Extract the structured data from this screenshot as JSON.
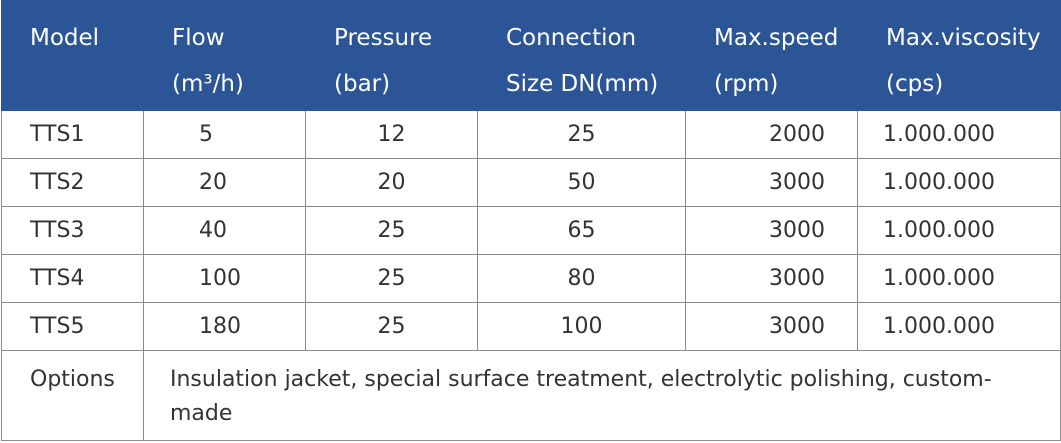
{
  "table": {
    "header": [
      [
        "Model"
      ],
      [
        "Flow",
        "(m³/h)"
      ],
      [
        "Pressure",
        "(bar)"
      ],
      [
        "Connection",
        "Size DN(mm)"
      ],
      [
        "Max.speed",
        "(rpm)"
      ],
      [
        "Max.viscosity",
        "(cps)"
      ]
    ],
    "rows": [
      [
        "TTS1",
        "5",
        "12",
        "25",
        "2000",
        "1.000.000"
      ],
      [
        "TTS2",
        "20",
        "20",
        "50",
        "3000",
        "1.000.000"
      ],
      [
        "TTS3",
        "40",
        "25",
        "65",
        "3000",
        "1.000.000"
      ],
      [
        "TTS4",
        "100",
        "25",
        "80",
        "3000",
        "1.000.000"
      ],
      [
        "TTS5",
        "180",
        "25",
        "100",
        "3000",
        "1.000.000"
      ]
    ],
    "options": {
      "label": "Options",
      "text": "Insulation jacket, special surface treatment, electrolytic polishing, custom-made"
    }
  }
}
